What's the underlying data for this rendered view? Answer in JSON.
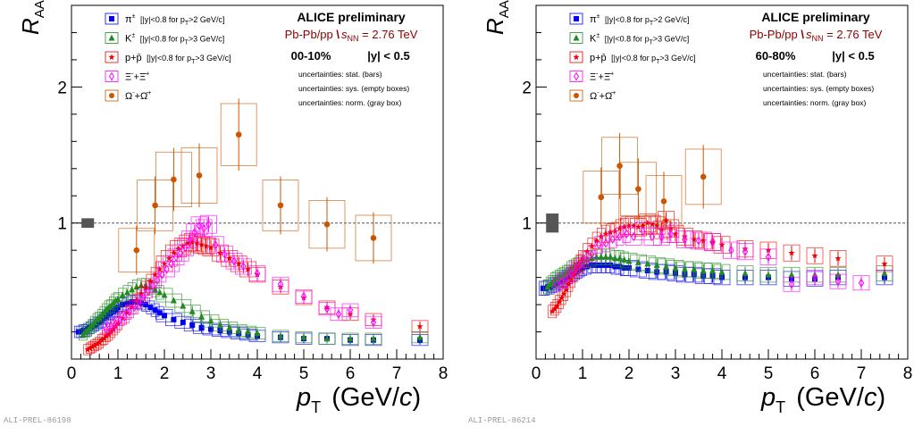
{
  "chart_data": [
    {
      "type": "scatter",
      "title": "ALICE preliminary",
      "subtitle": "Pb-Pb/pp \\s_NN = 2.76 TeV",
      "subtitle_parts": {
        "lead": "Pb-Pb/pp ",
        "sqrt": "\\",
        "s": "s",
        "sub": "NN",
        "rest": " = 2.76 TeV"
      },
      "selection_left": "00-10%",
      "selection_right": "|y| < 0.5",
      "uncertainty_notes": [
        "uncertainties: stat. (bars)",
        "uncertainties: sys. (empty boxes)",
        "uncertainties: norm. (gray box)"
      ],
      "xlabel": "p_T (GeV/c)",
      "xlabel_parts": {
        "p": "p",
        "sub": "T",
        "rest": " (GeV/",
        "c": "c",
        "close": ")"
      },
      "ylabel": "R_AA",
      "ylabel_parts": {
        "r": "R",
        "sub": "AA"
      },
      "xlim": [
        0,
        8
      ],
      "ylim": [
        0,
        2.6
      ],
      "xticks": [
        "0",
        "1",
        "2",
        "3",
        "4",
        "5",
        "6",
        "7",
        "8"
      ],
      "yticks": [
        {
          "value": 1,
          "label": "1"
        },
        {
          "value": 2,
          "label": "2"
        }
      ],
      "reference_line": 1,
      "norm_box": {
        "x": 0.35,
        "y": 1.0,
        "err": 0.035
      },
      "series": [
        {
          "name": "π± [|y|<0.8 for pT>2 GeV/c]",
          "color": "#0000ee",
          "marker": "square",
          "x": [
            0.15,
            0.2,
            0.25,
            0.3,
            0.35,
            0.4,
            0.45,
            0.5,
            0.55,
            0.6,
            0.65,
            0.7,
            0.75,
            0.8,
            0.85,
            0.9,
            0.95,
            1.0,
            1.1,
            1.2,
            1.3,
            1.4,
            1.5,
            1.6,
            1.7,
            1.8,
            1.9,
            2.0,
            2.2,
            2.4,
            2.6,
            2.8,
            3.0,
            3.2,
            3.4,
            3.6,
            3.8,
            4.0,
            4.5,
            5.0,
            5.5,
            6.0,
            6.5,
            7.5
          ],
          "y": [
            0.2,
            0.2,
            0.21,
            0.21,
            0.22,
            0.23,
            0.24,
            0.25,
            0.26,
            0.27,
            0.28,
            0.3,
            0.31,
            0.33,
            0.34,
            0.35,
            0.36,
            0.38,
            0.4,
            0.41,
            0.42,
            0.42,
            0.41,
            0.4,
            0.38,
            0.36,
            0.34,
            0.32,
            0.29,
            0.27,
            0.25,
            0.23,
            0.22,
            0.21,
            0.2,
            0.19,
            0.18,
            0.17,
            0.16,
            0.15,
            0.15,
            0.14,
            0.14,
            0.14
          ]
        },
        {
          "name": "K± [|y|<0.8 for pT>3 GeV/c]",
          "color": "#228b22",
          "marker": "triangle",
          "x": [
            0.25,
            0.3,
            0.35,
            0.4,
            0.45,
            0.5,
            0.55,
            0.6,
            0.65,
            0.7,
            0.75,
            0.8,
            0.85,
            0.9,
            0.95,
            1.0,
            1.1,
            1.2,
            1.3,
            1.4,
            1.5,
            1.6,
            1.7,
            1.8,
            1.9,
            2.0,
            2.2,
            2.4,
            2.6,
            2.8,
            3.0,
            3.2,
            3.4,
            3.6,
            3.8,
            4.0,
            4.5,
            5.0,
            5.5,
            6.0,
            6.5,
            7.5
          ],
          "y": [
            0.18,
            0.2,
            0.21,
            0.23,
            0.25,
            0.27,
            0.29,
            0.3,
            0.32,
            0.34,
            0.36,
            0.38,
            0.39,
            0.41,
            0.43,
            0.44,
            0.47,
            0.49,
            0.51,
            0.53,
            0.54,
            0.54,
            0.53,
            0.51,
            0.49,
            0.47,
            0.43,
            0.39,
            0.35,
            0.31,
            0.28,
            0.25,
            0.23,
            0.21,
            0.2,
            0.19,
            0.17,
            0.16,
            0.15,
            0.15,
            0.15,
            0.16
          ]
        },
        {
          "name": "p+p̄ [|y|<0.8 for pT>3 GeV/c]",
          "color": "#ee0000",
          "marker": "star",
          "x": [
            0.35,
            0.4,
            0.45,
            0.5,
            0.55,
            0.6,
            0.65,
            0.7,
            0.75,
            0.8,
            0.85,
            0.9,
            0.95,
            1.0,
            1.1,
            1.2,
            1.3,
            1.4,
            1.5,
            1.6,
            1.7,
            1.8,
            1.9,
            2.0,
            2.1,
            2.2,
            2.3,
            2.4,
            2.5,
            2.6,
            2.7,
            2.8,
            2.9,
            3.0,
            3.2,
            3.4,
            3.6,
            3.8,
            4.0,
            4.5,
            5.0,
            5.5,
            6.0,
            6.5,
            7.5
          ],
          "y": [
            0.07,
            0.08,
            0.09,
            0.1,
            0.11,
            0.12,
            0.14,
            0.15,
            0.17,
            0.18,
            0.2,
            0.22,
            0.24,
            0.26,
            0.3,
            0.34,
            0.38,
            0.43,
            0.48,
            0.52,
            0.57,
            0.62,
            0.66,
            0.7,
            0.74,
            0.78,
            0.81,
            0.83,
            0.85,
            0.86,
            0.85,
            0.84,
            0.83,
            0.82,
            0.78,
            0.74,
            0.7,
            0.66,
            0.62,
            0.53,
            0.45,
            0.38,
            0.33,
            0.29,
            0.24
          ]
        },
        {
          "name": "Ξ⁻+Ξ̄⁺",
          "color": "#ff00ff",
          "marker": "diamond-open",
          "x": [
            0.75,
            0.85,
            0.95,
            1.05,
            1.15,
            1.25,
            1.35,
            1.45,
            1.55,
            1.65,
            1.75,
            1.85,
            1.95,
            2.05,
            2.15,
            2.25,
            2.35,
            2.45,
            2.55,
            2.65,
            2.75,
            2.85,
            2.95,
            3.1,
            3.3,
            3.5,
            3.7,
            4.0,
            4.5,
            5.0,
            5.5,
            5.75,
            6.0,
            6.5
          ],
          "y": [
            0.22,
            0.24,
            0.26,
            0.29,
            0.31,
            0.35,
            0.38,
            0.42,
            0.46,
            0.5,
            0.54,
            0.58,
            0.62,
            0.66,
            0.7,
            0.75,
            0.78,
            0.82,
            0.88,
            0.93,
            0.98,
            0.96,
            0.99,
            0.84,
            0.77,
            0.72,
            0.68,
            0.63,
            0.55,
            0.46,
            0.37,
            0.33,
            0.36,
            0.27
          ]
        },
        {
          "name": "Ω⁻+Ω̄⁺",
          "color": "#cc5500",
          "marker": "circle",
          "x": [
            1.4,
            1.8,
            2.2,
            2.75,
            3.6,
            4.5,
            5.5,
            6.5
          ],
          "y": [
            0.8,
            1.13,
            1.32,
            1.35,
            1.65,
            1.13,
            0.99,
            0.89
          ]
        }
      ]
    },
    {
      "type": "scatter",
      "title": "ALICE preliminary",
      "subtitle": "Pb-Pb/pp \\s_NN = 2.76 TeV",
      "subtitle_parts": {
        "lead": "Pb-Pb/pp ",
        "sqrt": "\\",
        "s": "s",
        "sub": "NN",
        "rest": " = 2.76 TeV"
      },
      "selection_left": "60-80%",
      "selection_right": "|y| < 0.5",
      "uncertainty_notes": [
        "uncertainties: stat. (bars)",
        "uncertainties: sys. (empty boxes)",
        "uncertainties: norm. (gray box)"
      ],
      "xlabel": "p_T (GeV/c)",
      "xlabel_parts": {
        "p": "p",
        "sub": "T",
        "rest": " (GeV/",
        "c": "c",
        "close": ")"
      },
      "ylabel": "R_AA",
      "ylabel_parts": {
        "r": "R",
        "sub": "AA"
      },
      "xlim": [
        0,
        8
      ],
      "ylim": [
        0,
        2.6
      ],
      "xticks": [
        "0",
        "1",
        "2",
        "3",
        "4",
        "5",
        "6",
        "7",
        "8"
      ],
      "yticks": [
        {
          "value": 1,
          "label": "1"
        },
        {
          "value": 2,
          "label": "2"
        }
      ],
      "reference_line": 1,
      "norm_box": {
        "x": 0.35,
        "y": 1.0,
        "err": 0.07
      },
      "series": [
        {
          "name": "π± [|y|<0.8 for pT>2 GeV/c]",
          "color": "#0000ee",
          "marker": "square",
          "x": [
            0.15,
            0.2,
            0.25,
            0.3,
            0.35,
            0.4,
            0.45,
            0.5,
            0.55,
            0.6,
            0.65,
            0.7,
            0.75,
            0.8,
            0.85,
            0.9,
            0.95,
            1.0,
            1.1,
            1.2,
            1.3,
            1.4,
            1.5,
            1.6,
            1.7,
            1.8,
            1.9,
            2.0,
            2.2,
            2.4,
            2.6,
            2.8,
            3.0,
            3.2,
            3.4,
            3.6,
            3.8,
            4.0,
            4.5,
            5.0,
            5.5,
            6.0,
            6.5,
            7.5
          ],
          "y": [
            0.52,
            0.52,
            0.53,
            0.53,
            0.54,
            0.55,
            0.56,
            0.57,
            0.58,
            0.59,
            0.6,
            0.61,
            0.62,
            0.63,
            0.64,
            0.65,
            0.66,
            0.67,
            0.68,
            0.69,
            0.69,
            0.69,
            0.69,
            0.69,
            0.68,
            0.68,
            0.67,
            0.67,
            0.66,
            0.65,
            0.64,
            0.64,
            0.63,
            0.62,
            0.62,
            0.61,
            0.61,
            0.6,
            0.6,
            0.6,
            0.59,
            0.59,
            0.6,
            0.6
          ]
        },
        {
          "name": "K± [|y|<0.8 for pT>3 GeV/c]",
          "color": "#228b22",
          "marker": "triangle",
          "x": [
            0.25,
            0.3,
            0.35,
            0.4,
            0.45,
            0.5,
            0.55,
            0.6,
            0.65,
            0.7,
            0.75,
            0.8,
            0.85,
            0.9,
            0.95,
            1.0,
            1.1,
            1.2,
            1.3,
            1.4,
            1.5,
            1.6,
            1.7,
            1.8,
            1.9,
            2.0,
            2.2,
            2.4,
            2.6,
            2.8,
            3.0,
            3.2,
            3.4,
            3.6,
            3.8,
            4.0,
            4.5,
            5.0,
            5.5,
            6.0,
            6.5,
            7.5
          ],
          "y": [
            0.53,
            0.55,
            0.56,
            0.58,
            0.59,
            0.6,
            0.61,
            0.62,
            0.63,
            0.64,
            0.66,
            0.67,
            0.68,
            0.69,
            0.7,
            0.71,
            0.73,
            0.74,
            0.75,
            0.75,
            0.75,
            0.75,
            0.74,
            0.74,
            0.73,
            0.72,
            0.71,
            0.7,
            0.69,
            0.68,
            0.67,
            0.66,
            0.66,
            0.65,
            0.65,
            0.64,
            0.63,
            0.62,
            0.62,
            0.62,
            0.62,
            0.63
          ]
        },
        {
          "name": "p+p̄ [|y|<0.8 for pT>3 GeV/c]",
          "color": "#ee0000",
          "marker": "star",
          "x": [
            0.35,
            0.4,
            0.45,
            0.5,
            0.55,
            0.6,
            0.65,
            0.7,
            0.75,
            0.8,
            0.85,
            0.9,
            0.95,
            1.0,
            1.1,
            1.2,
            1.3,
            1.4,
            1.5,
            1.6,
            1.7,
            1.8,
            1.9,
            2.0,
            2.1,
            2.2,
            2.3,
            2.4,
            2.5,
            2.6,
            2.7,
            2.8,
            2.9,
            3.0,
            3.2,
            3.4,
            3.6,
            3.8,
            4.0,
            4.5,
            5.0,
            5.5,
            6.0,
            6.5,
            7.5
          ],
          "y": [
            0.35,
            0.37,
            0.39,
            0.42,
            0.45,
            0.48,
            0.51,
            0.55,
            0.58,
            0.62,
            0.65,
            0.68,
            0.71,
            0.74,
            0.79,
            0.83,
            0.87,
            0.9,
            0.92,
            0.93,
            0.94,
            0.96,
            0.97,
            0.98,
            0.98,
            0.97,
            0.98,
            1.0,
            0.99,
            0.98,
            0.95,
            1.02,
            0.96,
            0.92,
            0.9,
            0.88,
            0.87,
            0.86,
            0.84,
            0.81,
            0.8,
            0.78,
            0.76,
            0.74,
            0.7
          ]
        },
        {
          "name": "Ξ⁻+Ξ̄⁺",
          "color": "#ff00ff",
          "marker": "diamond-open",
          "x": [
            0.45,
            0.55,
            0.65,
            0.75,
            0.85,
            0.95,
            1.05,
            1.2,
            1.35,
            1.5,
            1.65,
            1.8,
            1.95,
            2.1,
            2.3,
            2.5,
            2.7,
            2.9,
            3.2,
            3.5,
            3.8,
            4.2,
            4.5,
            5.0,
            5.5,
            6.0,
            6.5,
            7.0
          ],
          "y": [
            0.55,
            0.57,
            0.59,
            0.63,
            0.66,
            0.69,
            0.73,
            0.77,
            0.84,
            0.85,
            0.88,
            0.9,
            0.92,
            0.9,
            0.94,
            0.9,
            0.9,
            0.92,
            0.88,
            0.87,
            0.86,
            0.8,
            0.79,
            0.75,
            0.55,
            0.6,
            0.57,
            0.56
          ]
        },
        {
          "name": "Ω⁻+Ω̄⁺",
          "color": "#cc5500",
          "marker": "circle",
          "x": [
            1.4,
            1.8,
            2.2,
            2.75,
            3.6
          ],
          "y": [
            1.19,
            1.42,
            1.25,
            1.16,
            1.34
          ]
        }
      ]
    }
  ],
  "legend_labels": {
    "pi": {
      "sym": "π",
      "sup": "±",
      "cut": "[|y|<0.8 for p",
      "cut_sub": "T",
      "cut_end": ">2 GeV/c]"
    },
    "k": {
      "sym": "K",
      "sup": "±",
      "cut": "[|y|<0.8 for p",
      "cut_sub": "T",
      "cut_end": ">3 GeV/c]"
    },
    "p": {
      "sym": "p+p̄",
      "cut": "[|y|<0.8 for p",
      "cut_sub": "T",
      "cut_end": ">3 GeV/c]"
    },
    "xi": {
      "a": "Ξ",
      "a_sup": "-",
      "plus": "+",
      "b": "Ξ̄",
      "b_sup": "+"
    },
    "om": {
      "a": "Ω",
      "a_sup": "-",
      "plus": "+",
      "b": "Ω̄",
      "b_sup": "+"
    }
  },
  "footer_ids": [
    "ALI-PREL-86198",
    "ALI-PREL-86214"
  ],
  "norm_box_color": "#555555"
}
